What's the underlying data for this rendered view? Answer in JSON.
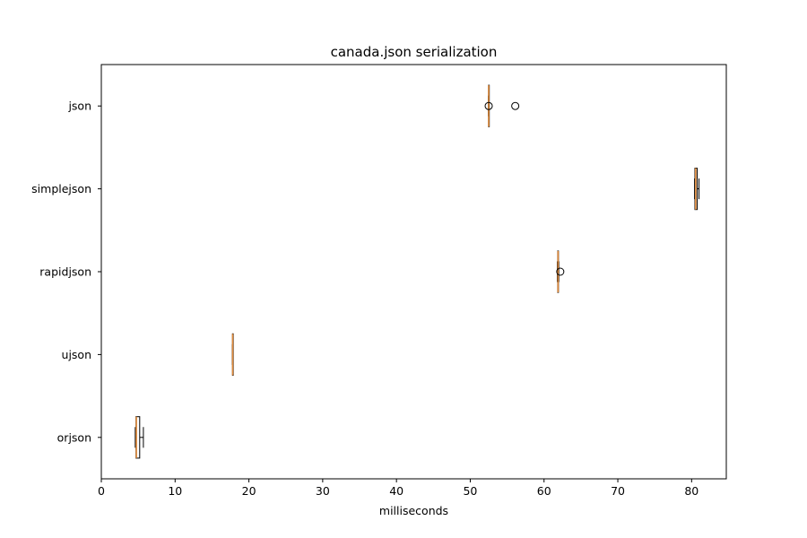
{
  "chart_data": {
    "type": "boxplot",
    "orientation": "horizontal",
    "title": "canada.json serialization",
    "xlabel": "milliseconds",
    "xlim": [
      0,
      84.7
    ],
    "xticks": [
      0,
      10,
      20,
      30,
      40,
      50,
      60,
      70,
      80
    ],
    "grid": false,
    "colors": {
      "median": "#e08a3a",
      "box": "#000000",
      "whisker": "#000000",
      "frame": "#000000"
    },
    "categories": [
      "json",
      "simplejson",
      "rapidjson",
      "ujson",
      "orjson"
    ],
    "boxes": [
      {
        "name": "json",
        "whislo": 52.45,
        "q1": 52.48,
        "med": 52.5,
        "q3": 52.52,
        "whishi": 52.55,
        "fliers": [
          52.5,
          56.1
        ]
      },
      {
        "name": "simplejson",
        "whislo": 80.4,
        "q1": 80.45,
        "med": 80.55,
        "q3": 80.75,
        "whishi": 81.0,
        "fliers": []
      },
      {
        "name": "rapidjson",
        "whislo": 61.8,
        "q1": 61.85,
        "med": 61.9,
        "q3": 61.95,
        "whishi": 62.0,
        "fliers": [
          62.2
        ]
      },
      {
        "name": "ujson",
        "whislo": 17.75,
        "q1": 17.78,
        "med": 17.8,
        "q3": 17.82,
        "whishi": 17.85,
        "fliers": []
      },
      {
        "name": "orjson",
        "whislo": 4.6,
        "q1": 4.7,
        "med": 4.75,
        "q3": 5.2,
        "whishi": 5.7,
        "fliers": []
      }
    ]
  }
}
